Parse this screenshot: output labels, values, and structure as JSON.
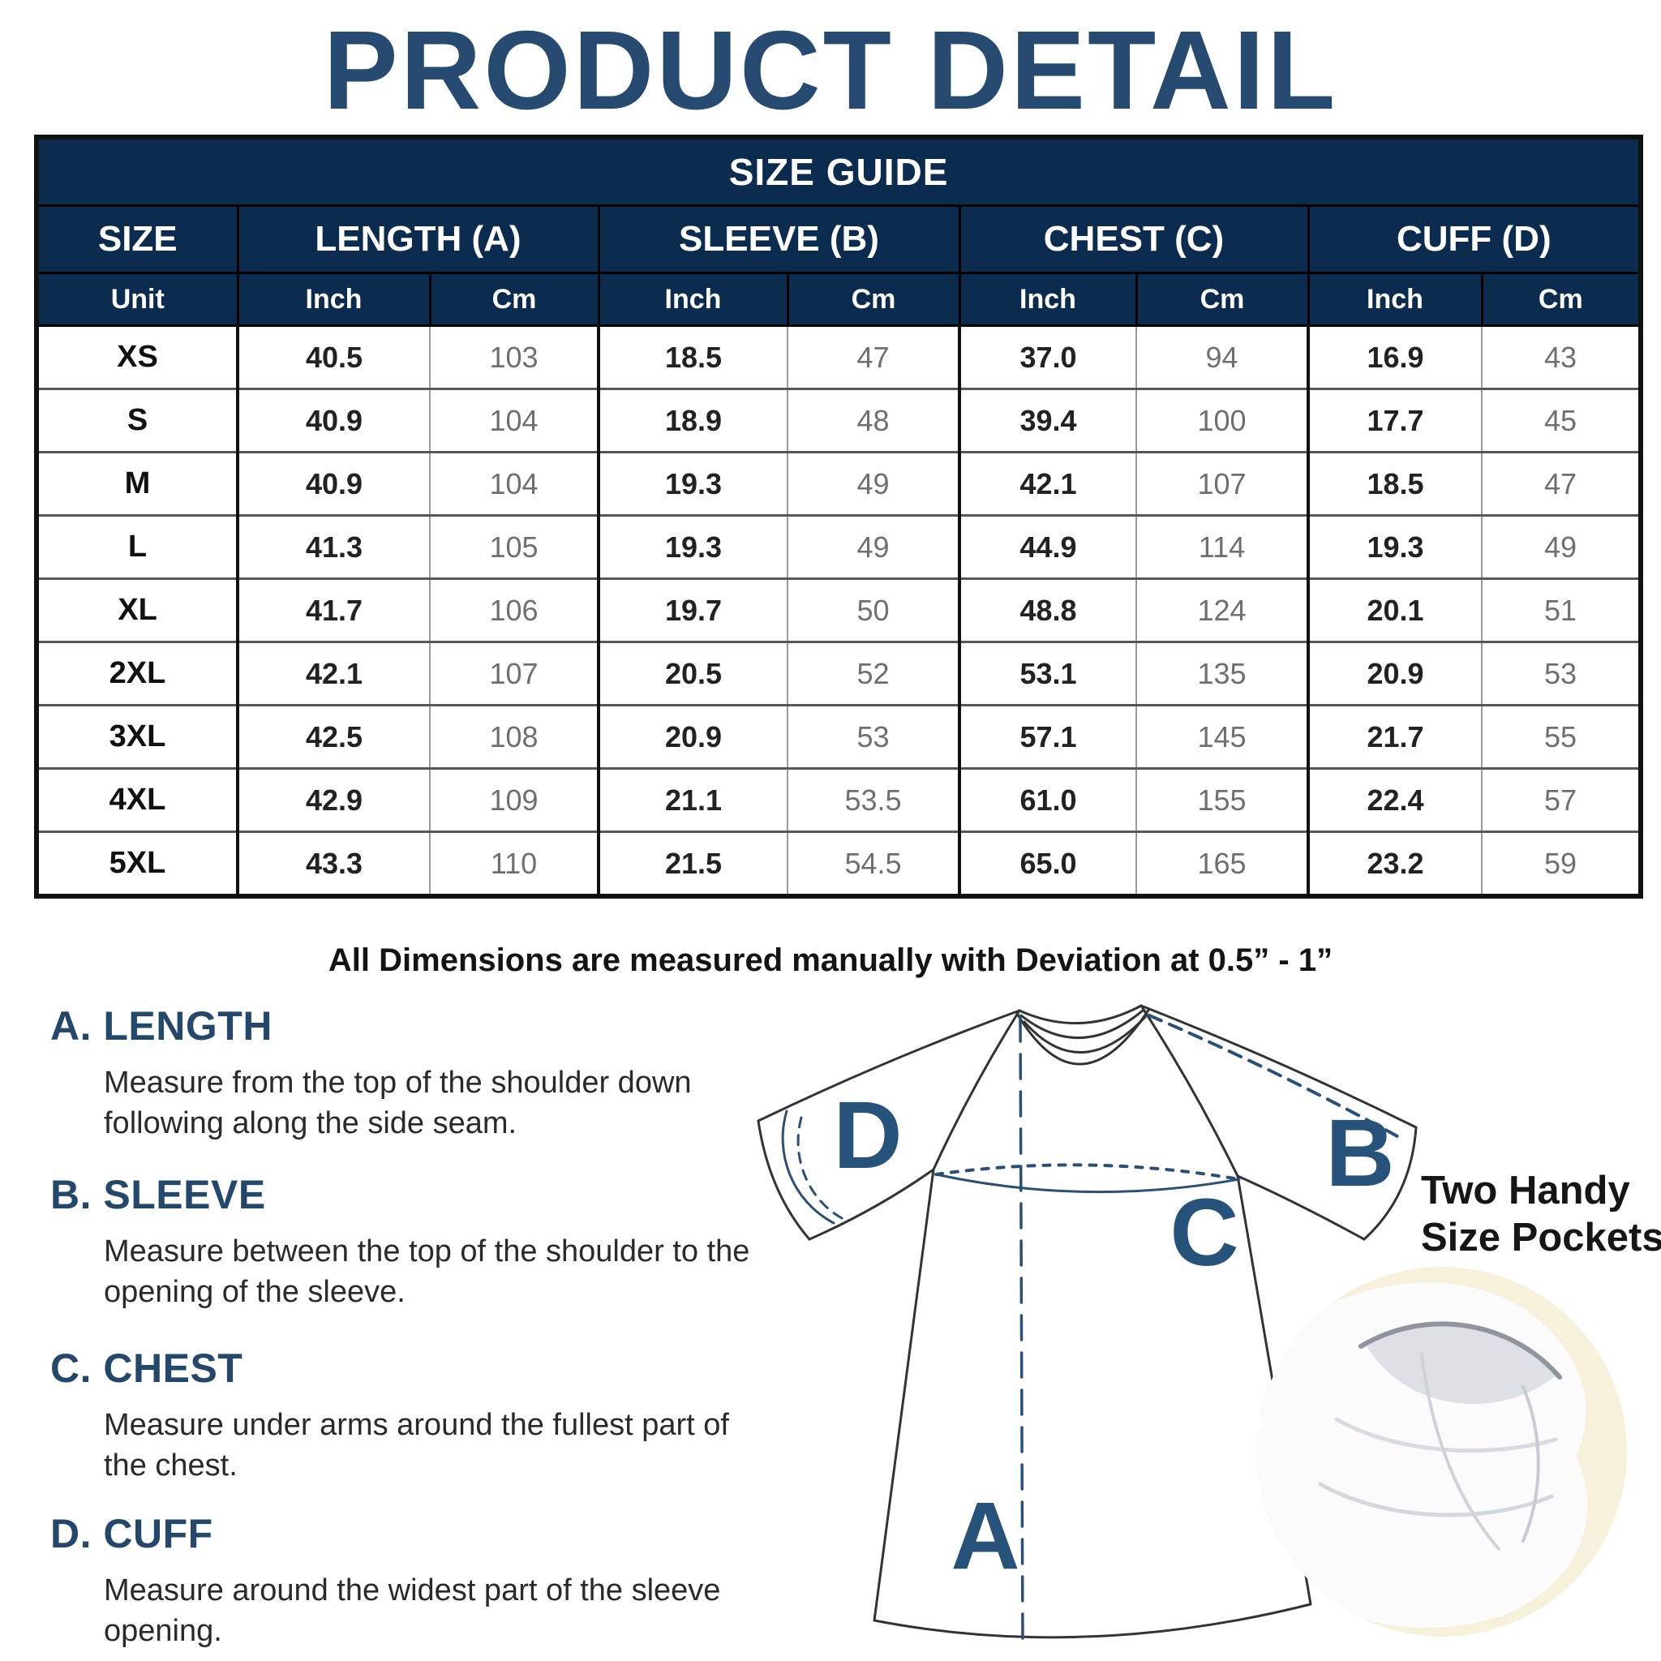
{
  "title": "PRODUCT DETAIL",
  "table": {
    "caption": "SIZE GUIDE",
    "group_headers": [
      "SIZE",
      "LENGTH (A)",
      "SLEEVE (B)",
      "CHEST (C)",
      "CUFF (D)"
    ],
    "unit_headers": [
      "Unit",
      "Inch",
      "Cm",
      "Inch",
      "Cm",
      "Inch",
      "Cm",
      "Inch",
      "Cm"
    ],
    "rows": [
      {
        "size": "XS",
        "values": [
          "40.5",
          "103",
          "18.5",
          "47",
          "37.0",
          "94",
          "16.9",
          "43"
        ]
      },
      {
        "size": "S",
        "values": [
          "40.9",
          "104",
          "18.9",
          "48",
          "39.4",
          "100",
          "17.7",
          "45"
        ]
      },
      {
        "size": "M",
        "values": [
          "40.9",
          "104",
          "19.3",
          "49",
          "42.1",
          "107",
          "18.5",
          "47"
        ]
      },
      {
        "size": "L",
        "values": [
          "41.3",
          "105",
          "19.3",
          "49",
          "44.9",
          "114",
          "19.3",
          "49"
        ]
      },
      {
        "size": "XL",
        "values": [
          "41.7",
          "106",
          "19.7",
          "50",
          "48.8",
          "124",
          "20.1",
          "51"
        ]
      },
      {
        "size": "2XL",
        "values": [
          "42.1",
          "107",
          "20.5",
          "52",
          "53.1",
          "135",
          "20.9",
          "53"
        ]
      },
      {
        "size": "3XL",
        "values": [
          "42.5",
          "108",
          "20.9",
          "53",
          "57.1",
          "145",
          "21.7",
          "55"
        ]
      },
      {
        "size": "4XL",
        "values": [
          "42.9",
          "109",
          "21.1",
          "53.5",
          "61.0",
          "155",
          "22.4",
          "57"
        ]
      },
      {
        "size": "5XL",
        "values": [
          "43.3",
          "110",
          "21.5",
          "54.5",
          "65.0",
          "165",
          "23.2",
          "59"
        ]
      }
    ]
  },
  "note": "All Dimensions are measured manually with Deviation at 0.5” - 1”",
  "sections": [
    {
      "id": "A",
      "title": "A. LENGTH",
      "description": "Measure from the top of the shoulder down following along the side seam."
    },
    {
      "id": "B",
      "title": "B. SLEEVE",
      "description": "Measure between the top of the shoulder to the opening of the sleeve."
    },
    {
      "id": "C",
      "title": "C. CHEST",
      "description": "Measure under arms around the fullest part of the chest."
    },
    {
      "id": "D",
      "title": "D. CUFF",
      "description": "Measure around the widest part of the sleeve opening."
    }
  ],
  "diagram": {
    "labels": {
      "length": "A",
      "sleeve": "B",
      "chest": "C",
      "cuff": "D"
    },
    "pockets_caption_line1": "Two Handy",
    "pockets_caption_line2": "Size Pockets"
  },
  "colors": {
    "header_navy": "#0b2c4e",
    "title_navy": "#274b70",
    "section_navy": "#24486b",
    "diagram_navy": "#27527a",
    "inch_text": "#222222",
    "cm_text": "#6f6f6f",
    "photo_cream": "#f7f0da",
    "skin": "#edab97"
  }
}
